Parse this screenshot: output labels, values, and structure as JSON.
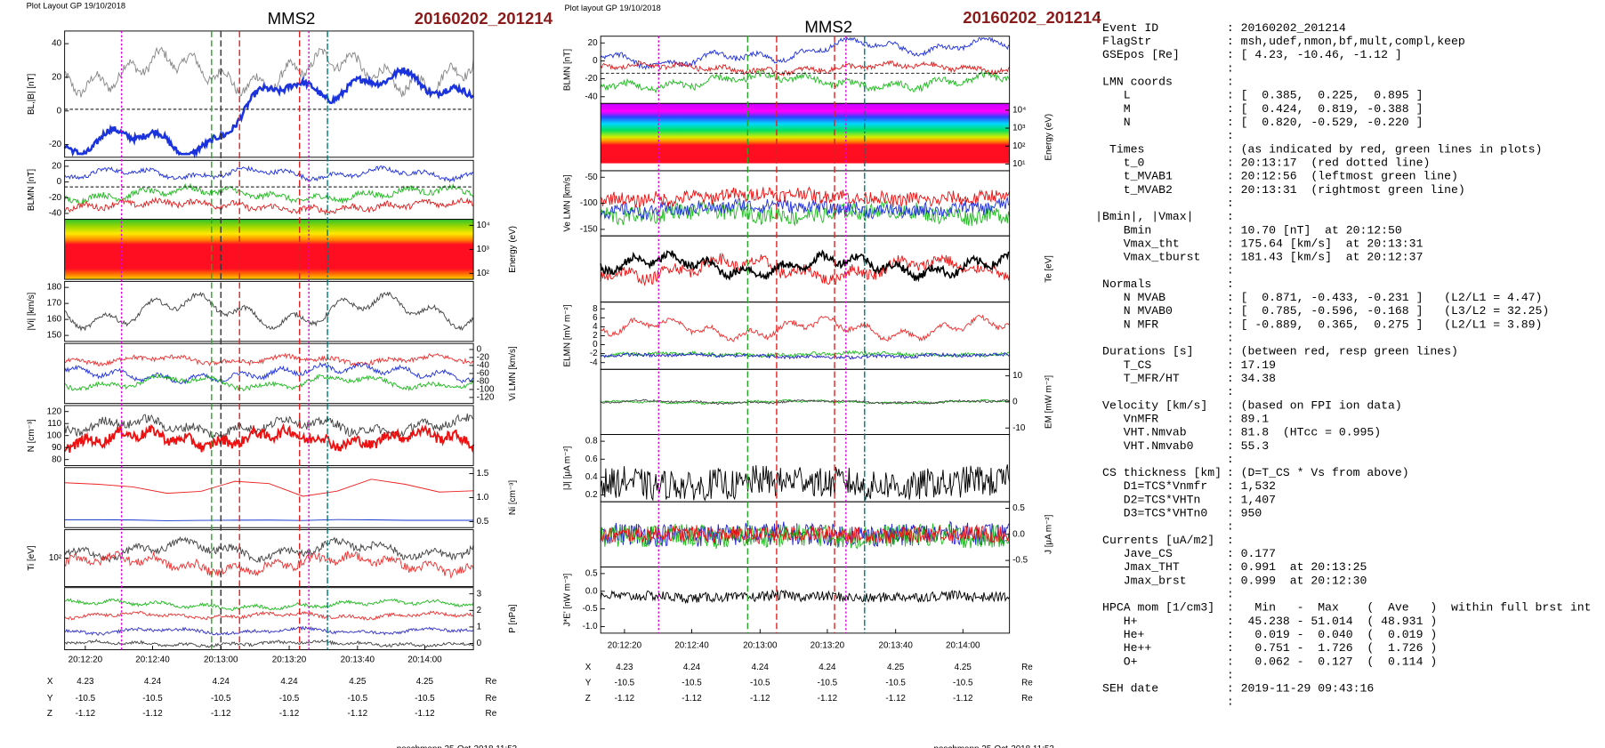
{
  "plots": [
    {
      "header": "Plot Layout GP 19/10/2018",
      "title": "MMS2",
      "event": "20160202_201214",
      "panels": [
        {
          "ylabel": "BL,|B| [nT]",
          "yticks": [
            "40",
            "20",
            "0",
            "-20"
          ]
        },
        {
          "ylabel": "BLMN [nT]",
          "yticks": [
            "20",
            "0",
            "-20",
            "-40"
          ]
        },
        {
          "ylabel": "Energy (eV)",
          "yticks": [
            "10⁴",
            "10³",
            "10²"
          ]
        },
        {
          "ylabel": "|Vi| [km/s]",
          "yticks": [
            "180",
            "170",
            "160",
            "150"
          ]
        },
        {
          "ylabel": "Vi LMN [km/s]",
          "yticks": [
            "0",
            "-20",
            "-40",
            "-60",
            "-80",
            "-100",
            "-120"
          ]
        },
        {
          "ylabel": "N [cm⁻³]",
          "yticks": [
            "120",
            "110",
            "100",
            "90",
            "80"
          ]
        },
        {
          "ylabel": "Ni [cm⁻³]",
          "yticks": [
            "1.5",
            "1.0",
            "0.5"
          ]
        },
        {
          "ylabel": "Ti [eV]",
          "yticks": [
            "10²"
          ]
        },
        {
          "ylabel": "P [nPa]",
          "yticks": [
            "3",
            "2",
            "1",
            "0"
          ]
        }
      ],
      "xticks": [
        "20:12:20",
        "20:12:40",
        "20:13:00",
        "20:13:20",
        "20:13:40",
        "20:14:00"
      ],
      "coords": [
        {
          "axis": "X",
          "values": [
            "4.23",
            "4.24",
            "4.24",
            "4.24",
            "4.25",
            "4.25"
          ],
          "unit": "Re"
        },
        {
          "axis": "Y",
          "values": [
            "-10.5",
            "-10.5",
            "-10.5",
            "-10.5",
            "-10.5",
            "-10.5"
          ],
          "unit": "Re"
        },
        {
          "axis": "Z",
          "values": [
            "-1.12",
            "-1.12",
            "-1.12",
            "-1.12",
            "-1.12",
            "-1.12"
          ],
          "unit": "Re"
        }
      ],
      "footer": "paschmann 25-Oct-2018 11:53"
    },
    {
      "header": "Plot layout GP 19/10/2018",
      "title": "MMS2",
      "event": "20160202_201214",
      "panels": [
        {
          "ylabel": "BLMN [nT]",
          "yticks": [
            "20",
            "0",
            "-20",
            "-40"
          ]
        },
        {
          "ylabel": "Energy (eV)",
          "yticks": [
            "10⁴",
            "10³",
            "10²",
            "10¹"
          ]
        },
        {
          "ylabel": "Ve LMN [km/s]",
          "yticks": [
            "-50",
            "-100",
            "-150"
          ]
        },
        {
          "ylabel": "Te [eV]"
        },
        {
          "ylabel": "ELMN [mV m⁻²]",
          "yticks": [
            "8",
            "6",
            "4",
            "2",
            "0",
            "-2",
            "-4"
          ]
        },
        {
          "ylabel": "EM [mW m⁻²]",
          "yticks": [
            "10",
            "0",
            "-10"
          ]
        },
        {
          "ylabel": "|J| [μA m⁻²]",
          "yticks": [
            "0.8",
            "0.6",
            "0.4",
            "0.2"
          ]
        },
        {
          "ylabel": "J [μA m⁻²]",
          "yticks": [
            "0.5",
            "0.0",
            "-0.5"
          ]
        },
        {
          "ylabel": "J*E' [nW m⁻³]",
          "yticks": [
            "0.5",
            "0.0",
            "-0.5",
            "-1.0"
          ]
        }
      ],
      "xticks": [
        "20:12:20",
        "20:12:40",
        "20:13:00",
        "20:13:20",
        "20:13:40",
        "20:14:00"
      ],
      "coords": [
        {
          "axis": "X",
          "values": [
            "4.23",
            "4.24",
            "4.24",
            "4.24",
            "4.25",
            "4.25"
          ],
          "unit": "Re"
        },
        {
          "axis": "Y",
          "values": [
            "-10.5",
            "-10.5",
            "-10.5",
            "-10.5",
            "-10.5",
            "-10.5"
          ],
          "unit": "Re"
        },
        {
          "axis": "Z",
          "values": [
            "-1.12",
            "-1.12",
            "-1.12",
            "-1.12",
            "-1.12",
            "-1.12"
          ],
          "unit": "Re"
        }
      ],
      "footer": "paschmann 25-Oct-2018 11:53"
    }
  ],
  "info": [
    {
      "text": ":"
    },
    {
      "label": " Event ID",
      "text": ": 20160202_201214"
    },
    {
      "label": " FlagStr",
      "text": ": msh,udef,nmon,bf,mult,compl,keep"
    },
    {
      "label": " GSEpos [Re]",
      "text": ": [ 4.23, -10.46, -1.12 ]"
    },
    {
      "text": ":"
    },
    {
      "label": " LMN coords",
      "text": ":"
    },
    {
      "label": "    L",
      "text": ": [  0.385,  0.225,  0.895 ]"
    },
    {
      "label": "    M",
      "text": ": [  0.424,  0.819, -0.388 ]"
    },
    {
      "label": "    N",
      "text": ": [  0.820, -0.529, -0.220 ]"
    },
    {
      "text": ":"
    },
    {
      "label": "  Times",
      "text": ": (as indicated by red, green lines in plots)"
    },
    {
      "label": "    t_0",
      "text": ": 20:13:17  (red dotted line)"
    },
    {
      "label": "    t_MVAB1",
      "text": ": 20:12:56  (leftmost green line)"
    },
    {
      "label": "    t_MVAB2",
      "text": ": 20:13:31  (rightmost green line)"
    },
    {
      "text": ":"
    },
    {
      "label": "|Bmin|, |Vmax|",
      "text": ":"
    },
    {
      "label": "    Bmin",
      "text": ": 10.70 [nT]  at 20:12:50"
    },
    {
      "label": "    Vmax_tht",
      "text": ": 175.64 [km/s]  at 20:13:31"
    },
    {
      "label": "    Vmax_tburst",
      "text": ": 181.43 [km/s]  at 20:12:37"
    },
    {
      "text": ":"
    },
    {
      "label": " Normals",
      "text": ":"
    },
    {
      "label": "    N MVAB",
      "text": ": [  0.871, -0.433, -0.231 ]   (L2/L1 = 4.47)"
    },
    {
      "label": "    N MVAB0",
      "text": ": [  0.785, -0.596, -0.168 ]   (L3/L2 = 32.25)"
    },
    {
      "label": "    N MFR",
      "text": ": [ -0.889,  0.365,  0.275 ]   (L2/L1 = 3.89)"
    },
    {
      "text": ":"
    },
    {
      "label": " Durations [s]",
      "text": ": (between red, resp green lines)"
    },
    {
      "label": "    T_CS",
      "text": ": 17.19"
    },
    {
      "label": "    T_MFR/HT",
      "text": ": 34.38"
    },
    {
      "text": ":"
    },
    {
      "label": " Velocity [km/s]",
      "text": ": (based on FPI ion data)"
    },
    {
      "label": "    VnMFR",
      "text": ": 89.1"
    },
    {
      "label": "    VHT.Nmvab",
      "text": ": 81.8  (HTcc = 0.995)"
    },
    {
      "label": "    VHT.Nmvab0",
      "text": ": 55.3"
    },
    {
      "text": ":"
    },
    {
      "label": " CS thickness [km]",
      "text": ": (D=T_CS * Vs from above)"
    },
    {
      "label": "    D1=TCS*Vnmfr",
      "text": ": 1,532"
    },
    {
      "label": "    D2=TCS*VHTn",
      "text": ": 1,407"
    },
    {
      "label": "    D3=TCS*VHTn0",
      "text": ": 950"
    },
    {
      "text": ":"
    },
    {
      "label": " Currents [uA/m2]",
      "text": ":"
    },
    {
      "label": "    Jave_CS",
      "text": ": 0.177"
    },
    {
      "label": "    Jmax_THT",
      "text": ": 0.991  at 20:13:25"
    },
    {
      "label": "    Jmax_brst",
      "text": ": 0.999  at 20:12:30"
    },
    {
      "text": ":"
    },
    {
      "label": " HPCA mom [1/cm3]",
      "text": ":   Min   -  Max    (  Ave   )  within full brst int"
    },
    {
      "label": "    H+",
      "text": ":  45.238 - 51.014  ( 48.931 )"
    },
    {
      "label": "    He+",
      "text": ":   0.019 -  0.040  (  0.019 )"
    },
    {
      "label": "    He++",
      "text": ":   0.751 -  1.726  (  1.726 )"
    },
    {
      "label": "    O+",
      "text": ":   0.062 -  0.127  (  0.114 )"
    },
    {
      "text": ":"
    },
    {
      "label": " SEH date",
      "text": ": 2019-11-29 09:43:16"
    },
    {
      "text": ":"
    }
  ]
}
